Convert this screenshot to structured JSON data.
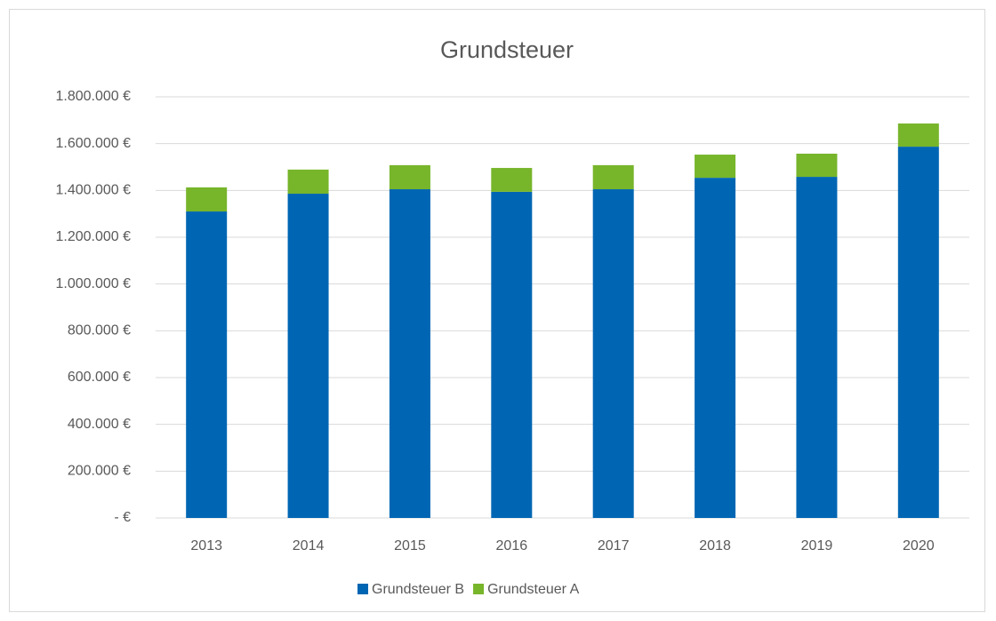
{
  "chart_data": {
    "type": "stacked_bar",
    "title": "Grundsteuer",
    "categories": [
      "2013",
      "2014",
      "2015",
      "2016",
      "2017",
      "2018",
      "2019",
      "2020"
    ],
    "series": [
      {
        "name": "Grundsteuer B",
        "color": "#0066b3",
        "values": [
          1310000,
          1386000,
          1405000,
          1394000,
          1405000,
          1454000,
          1458000,
          1587000
        ]
      },
      {
        "name": "Grundsteuer A",
        "color": "#77b52b",
        "values": [
          103000,
          103000,
          103000,
          102000,
          103000,
          99000,
          99000,
          99000
        ]
      }
    ],
    "ylim": [
      0,
      1800000
    ],
    "yticks": [
      {
        "value": 0,
        "label": "-   €"
      },
      {
        "value": 200000,
        "label": "200.000 €"
      },
      {
        "value": 400000,
        "label": "400.000 €"
      },
      {
        "value": 600000,
        "label": "600.000 €"
      },
      {
        "value": 800000,
        "label": "800.000 €"
      },
      {
        "value": 1000000,
        "label": "1.000.000 €"
      },
      {
        "value": 1200000,
        "label": "1.200.000 €"
      },
      {
        "value": 1400000,
        "label": "1.400.000 €"
      },
      {
        "value": 1600000,
        "label": "1.600.000 €"
      },
      {
        "value": 1800000,
        "label": "1.800.000 €"
      }
    ],
    "grid": true,
    "legend": "bottom"
  }
}
